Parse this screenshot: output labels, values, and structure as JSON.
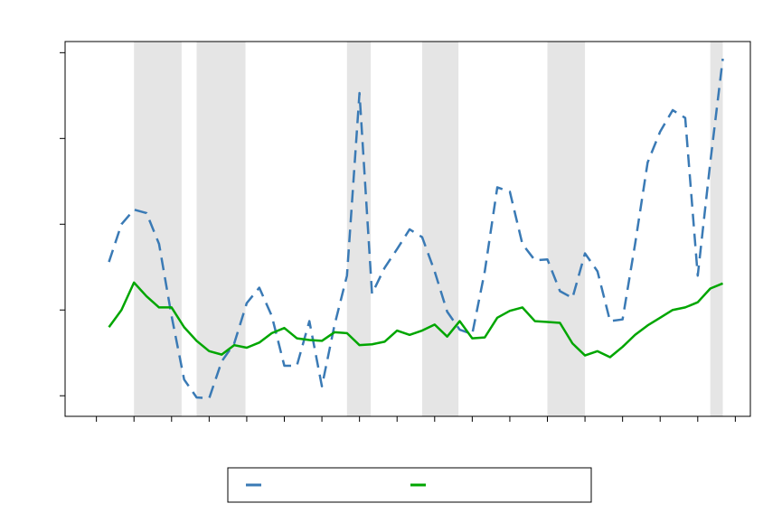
{
  "chart_data": {
    "type": "line",
    "x": [
      0,
      1,
      2,
      3,
      4,
      5,
      6,
      7,
      8,
      9,
      10,
      11,
      12,
      13,
      14,
      15,
      16,
      17,
      18,
      19,
      20,
      21,
      22,
      23,
      24,
      25,
      26,
      27,
      28,
      29,
      30,
      31,
      32,
      33,
      34,
      35,
      36,
      37,
      38,
      39,
      40,
      41,
      42,
      43,
      44,
      45,
      46,
      47,
      48,
      49
    ],
    "series": [
      {
        "color": "#3a7ab5",
        "dash": true,
        "values": [
          1.56,
          2.0,
          2.17,
          2.13,
          1.77,
          0.93,
          0.19,
          -0.02,
          -0.03,
          0.4,
          0.61,
          1.08,
          1.26,
          0.93,
          0.35,
          0.35,
          0.87,
          0.11,
          0.82,
          1.4,
          3.53,
          1.19,
          1.49,
          1.71,
          1.94,
          1.85,
          1.45,
          0.98,
          0.77,
          0.72,
          1.45,
          2.43,
          2.38,
          1.77,
          1.58,
          1.59,
          1.22,
          1.14,
          1.66,
          1.45,
          0.87,
          0.89,
          1.77,
          2.72,
          3.08,
          3.33,
          3.24,
          1.4,
          2.72,
          3.93
        ]
      },
      {
        "color": "#00a600",
        "dash": false,
        "values": [
          0.8,
          1.0,
          1.32,
          1.16,
          1.03,
          1.03,
          0.8,
          0.64,
          0.52,
          0.48,
          0.59,
          0.56,
          0.62,
          0.73,
          0.79,
          0.67,
          0.65,
          0.64,
          0.74,
          0.73,
          0.59,
          0.6,
          0.63,
          0.76,
          0.71,
          0.76,
          0.83,
          0.69,
          0.87,
          0.67,
          0.68,
          0.91,
          0.99,
          1.03,
          0.87,
          0.86,
          0.85,
          0.61,
          0.47,
          0.52,
          0.45,
          0.57,
          0.71,
          0.82,
          0.91,
          1.0,
          1.03,
          1.09,
          1.25,
          1.31
        ]
      }
    ],
    "shaded": [
      [
        2,
        5.8
      ],
      [
        7,
        10.9
      ],
      [
        19,
        20.9
      ],
      [
        25,
        27.9
      ],
      [
        35,
        38
      ],
      [
        48,
        49
      ]
    ],
    "shade_color": "#e5e5e5",
    "xlim": [
      -3.5,
      51.2
    ],
    "xticks": [
      -1,
      2,
      5,
      8,
      11,
      14,
      17,
      20,
      23,
      26,
      29,
      32,
      35,
      38,
      41,
      44,
      47,
      50
    ],
    "ylim": [
      -0.24,
      4.13
    ],
    "yticks": [
      0,
      1,
      2,
      3,
      4
    ],
    "legend": "bottom"
  }
}
